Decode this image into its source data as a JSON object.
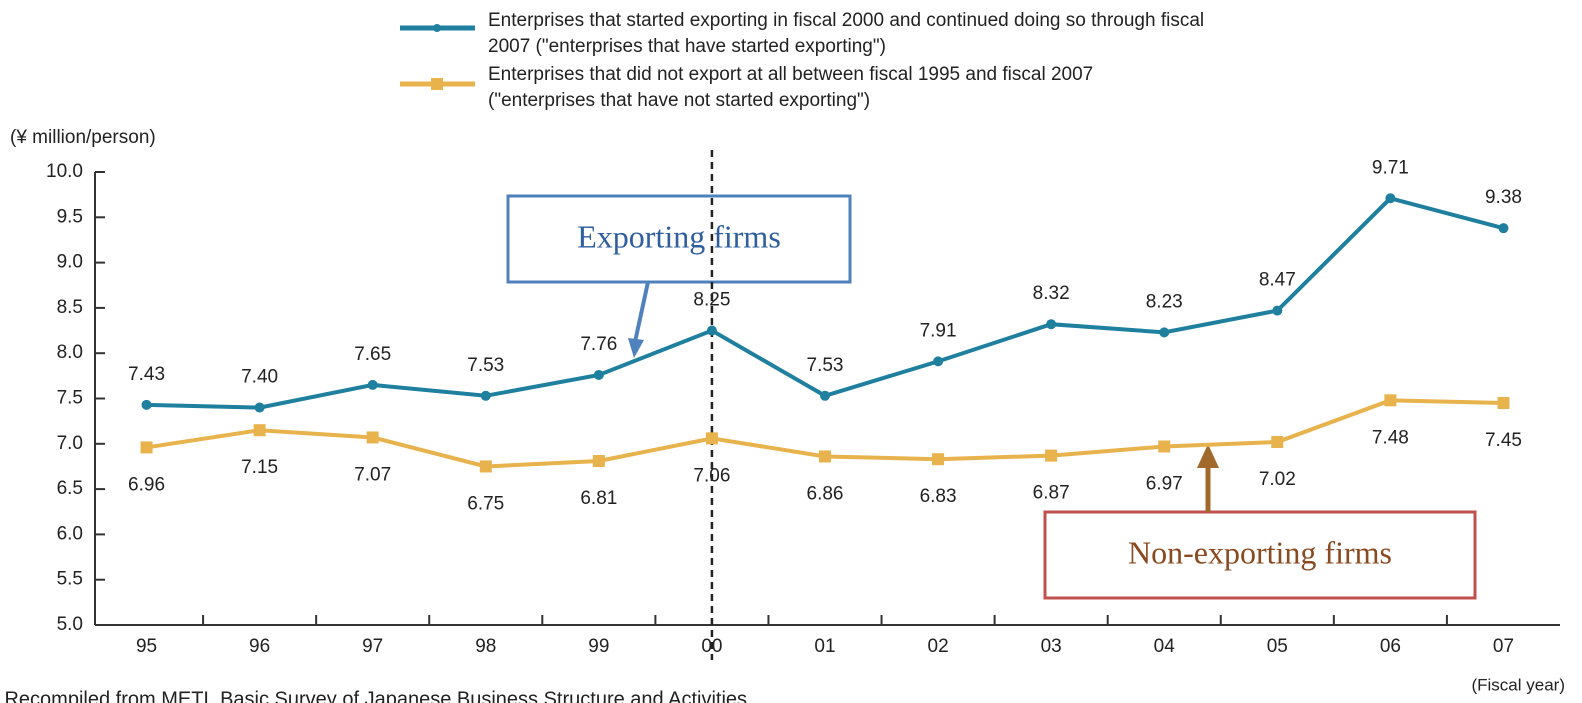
{
  "chart_data": {
    "type": "line",
    "y_label": "(¥ million/person)",
    "x_label": "(Fiscal year)",
    "source": "Source: Recompiled from METI, Basic Survey of Japanese Business Structure and Activities",
    "annotations": [
      "Exporting firms",
      "Non-exporting firms"
    ],
    "categories": [
      "95",
      "96",
      "97",
      "98",
      "99",
      "00",
      "01",
      "02",
      "03",
      "04",
      "05",
      "06",
      "07"
    ],
    "series": [
      {
        "name": "Enterprises that started exporting in fiscal 2000 and continued doing so through fiscal 2007 (\"enterprises that have started exporting\")",
        "color": "#1f7f9e",
        "values": [
          7.43,
          7.4,
          7.65,
          7.53,
          7.76,
          8.25,
          7.53,
          7.91,
          8.32,
          8.23,
          8.47,
          9.71,
          9.38
        ],
        "value_labels": [
          "7.43",
          "7.40",
          "7.65",
          "7.53",
          "7.76",
          "8.25",
          "7.53",
          "7.91",
          "8.32",
          "8.23",
          "8.47",
          "9.71",
          "9.38"
        ]
      },
      {
        "name": "Enterprises that did not export at all between fiscal 1995 and fiscal 2007 (\"enterprises that have not started exporting\")",
        "color": "#e8b24c",
        "values": [
          6.96,
          7.15,
          7.07,
          6.75,
          6.81,
          7.06,
          6.86,
          6.83,
          6.87,
          6.97,
          7.02,
          7.48,
          7.45
        ],
        "value_labels": [
          "6.96",
          "7.15",
          "7.07",
          "6.75",
          "6.81",
          "7.06",
          "6.86",
          "6.83",
          "6.87",
          "6.97",
          "7.02",
          "7.48",
          "7.45"
        ]
      }
    ],
    "ylim": [
      5.0,
      10.0
    ],
    "yticks": [
      {
        "value": 5.0,
        "label": "5.0"
      },
      5.5,
      {
        "value": 6.0,
        "label": "6.0"
      },
      6.5,
      {
        "value": 7.0,
        "label": "7.0"
      },
      7.5,
      {
        "value": 8.0,
        "label": "8.0"
      },
      8.5,
      {
        "value": 9.0,
        "label": "9.0"
      },
      9.5,
      {
        "value": 10.0,
        "label": "10.0"
      }
    ],
    "grid": false
  }
}
